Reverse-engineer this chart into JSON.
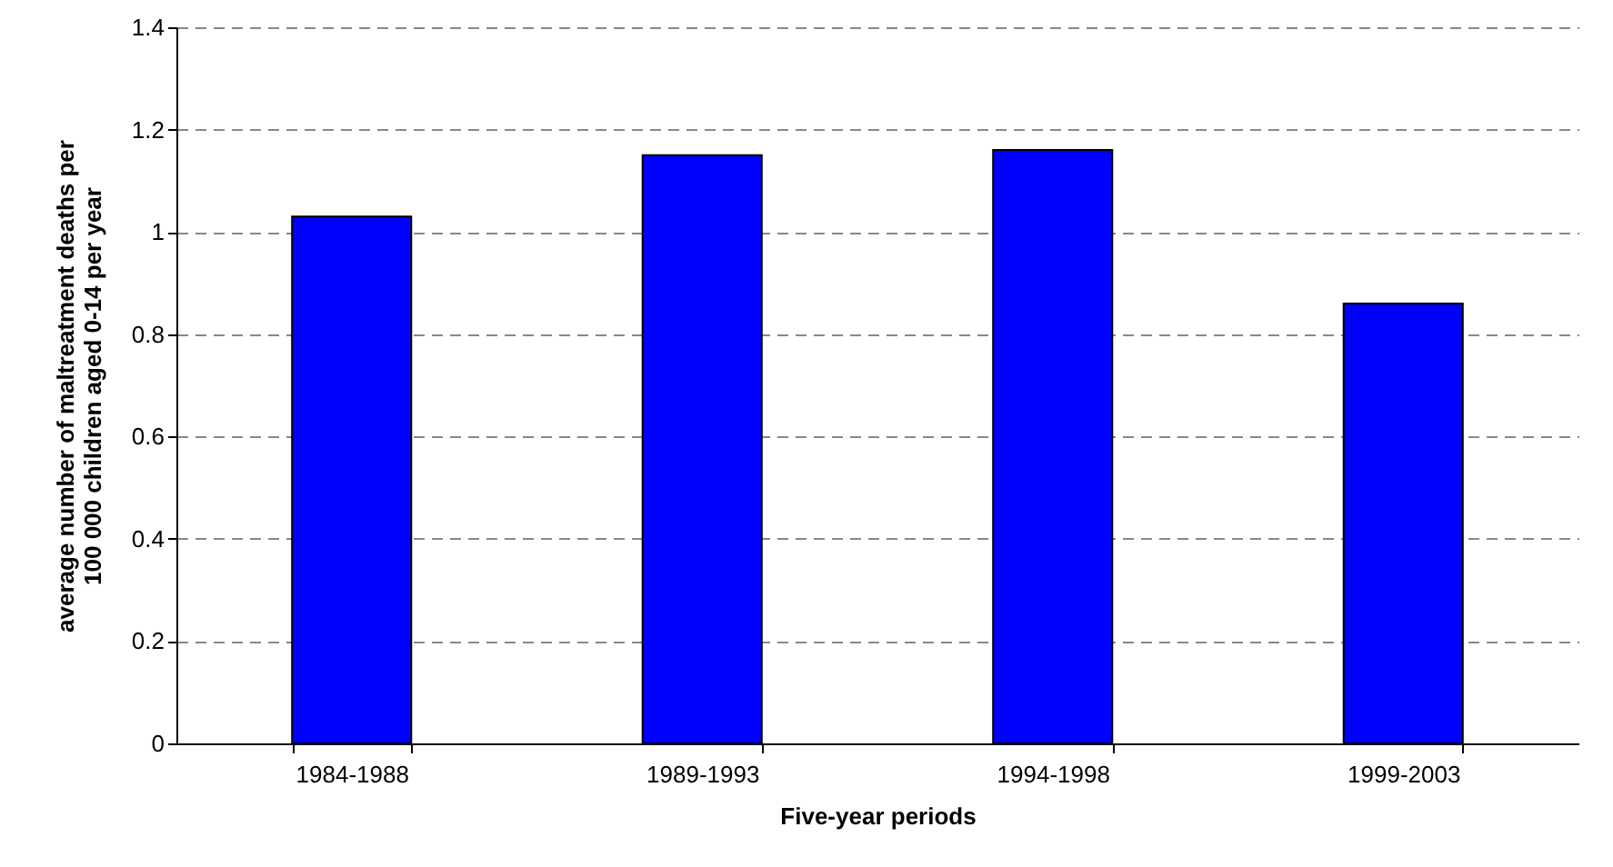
{
  "chart_data": {
    "type": "bar",
    "xlabel": "Five-year periods",
    "ylabel": "average number of maltreatment deaths per 100 000 children aged 0-14 per year",
    "categories": [
      "1984-1988",
      "1989-1993",
      "1994-1998",
      "1999-2003"
    ],
    "values": [
      1.03,
      1.15,
      1.16,
      0.86
    ],
    "color": "#0000ff",
    "ylim": [
      0,
      1.4
    ],
    "yticks": [
      0,
      0.2,
      0.4,
      0.6,
      0.8,
      1,
      1.2,
      1.4
    ],
    "grid": "y",
    "line_style": "dashed"
  }
}
